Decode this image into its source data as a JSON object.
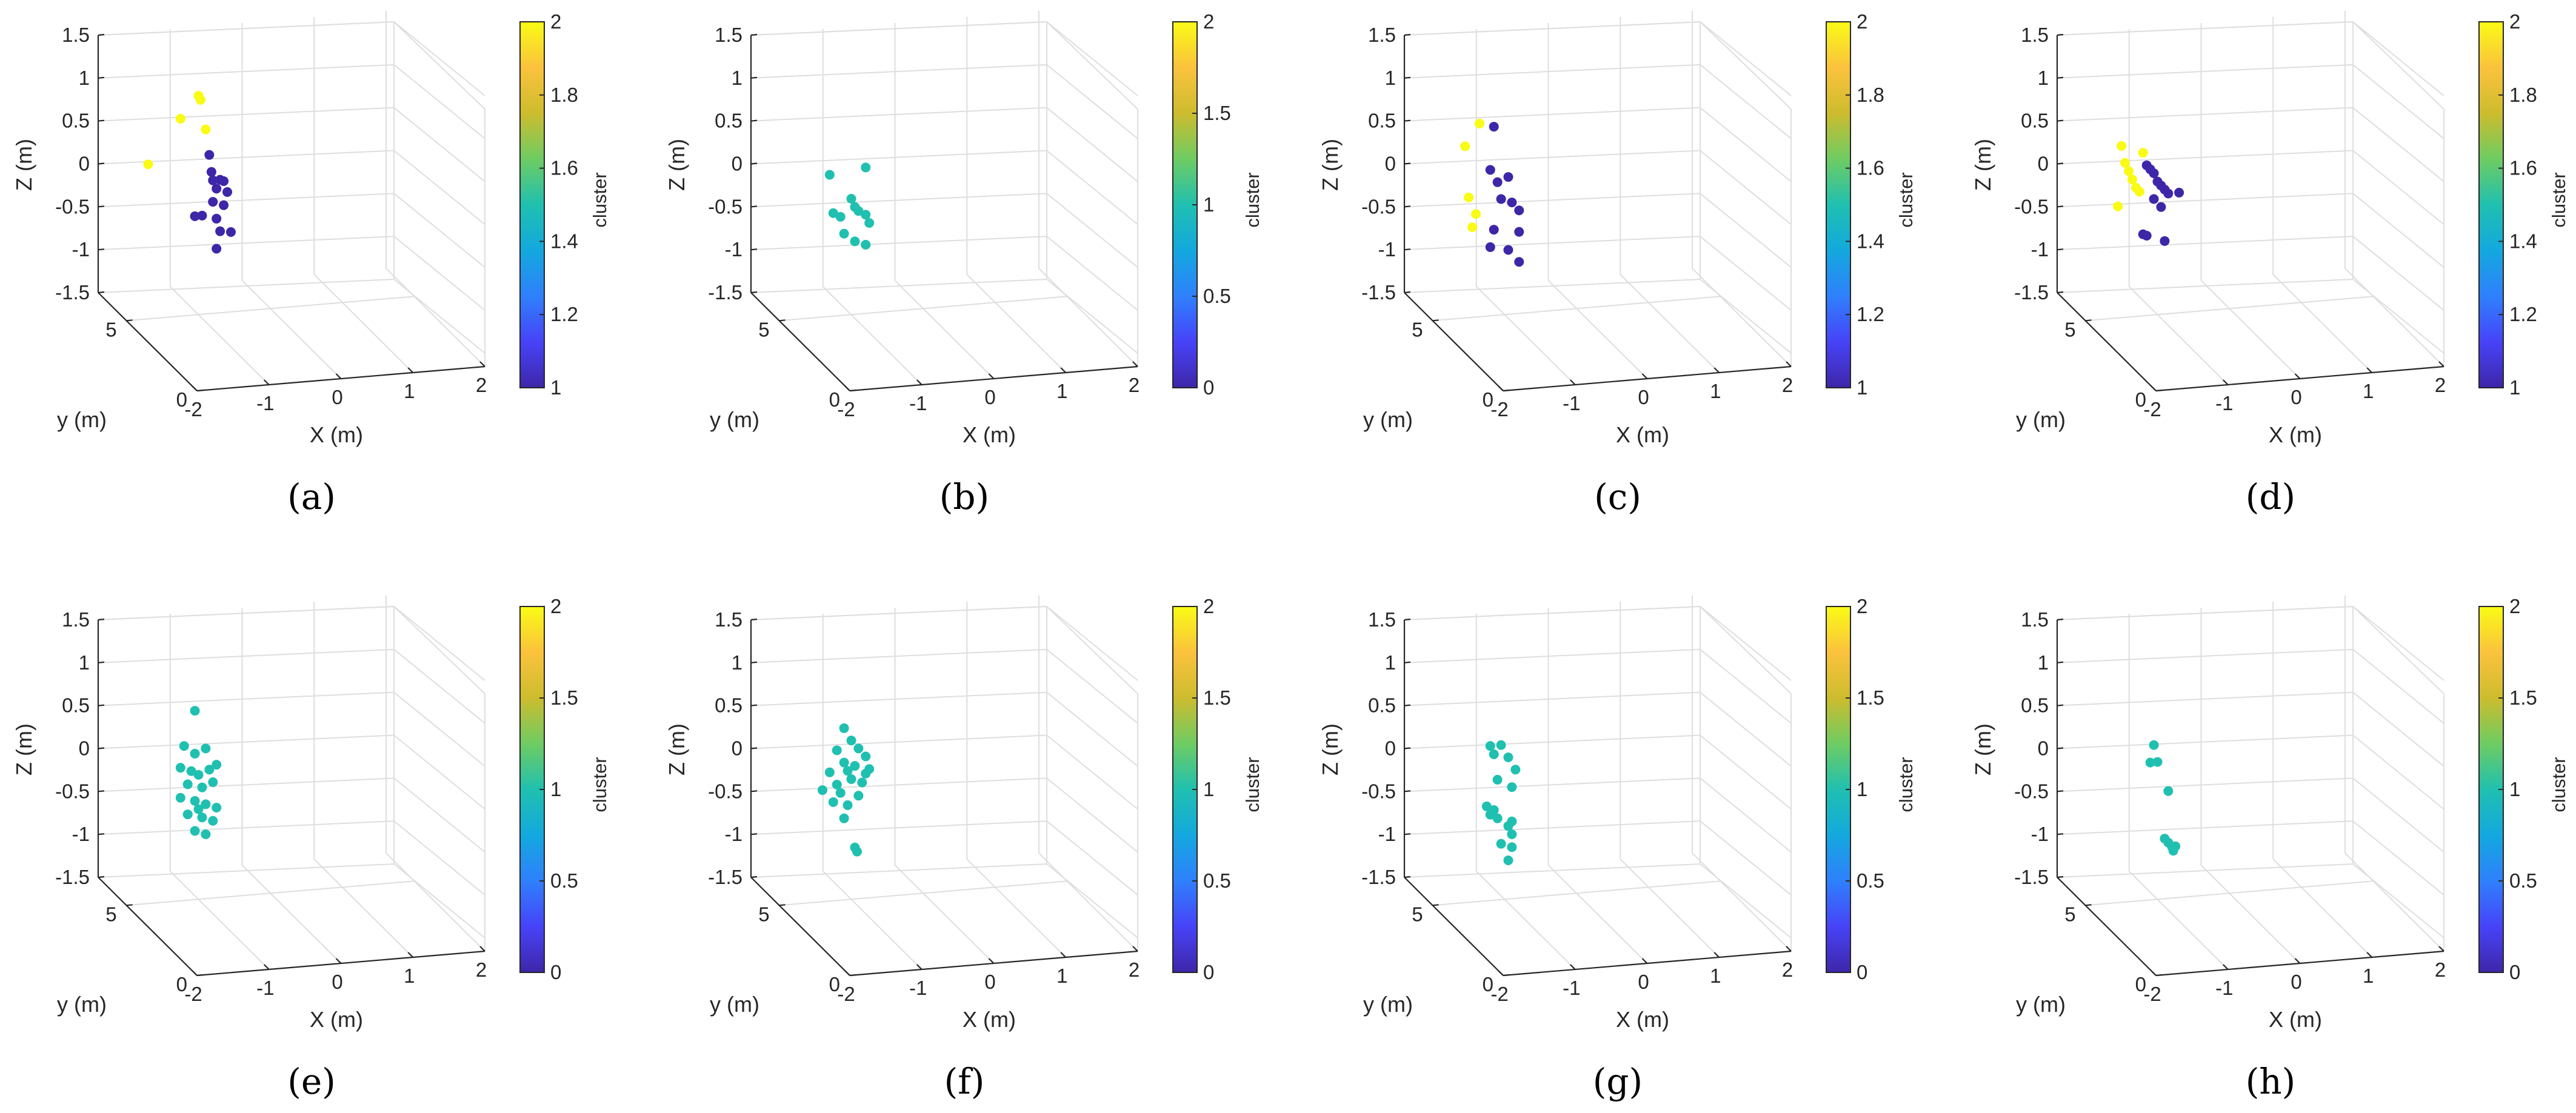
{
  "figure": {
    "colormap": [
      "#3e26a8",
      "#4743f8",
      "#2f80fc",
      "#13a8de",
      "#20c0b0",
      "#6ecc62",
      "#cdbc2e",
      "#fbc23d",
      "#f9fb15"
    ],
    "axis_line_color": "#262626",
    "grid_color": "#dedede"
  },
  "chart_data": [
    {
      "id": "a",
      "caption": "(a)",
      "type": "scatter",
      "projection": "3d",
      "xlabel": "X (m)",
      "ylabel": "y (m)",
      "zlabel": "Z (m)",
      "xlim": [
        -2,
        2
      ],
      "ylim": [
        0,
        7
      ],
      "zlim": [
        -1.5,
        1.5
      ],
      "x_ticks": [
        "-2",
        "-1",
        "0",
        "1",
        "2"
      ],
      "y_ticks": [
        "0",
        "5"
      ],
      "z_ticks": [
        "-1.5",
        "-1",
        "-0.5",
        "0",
        "0.5",
        "1",
        "1.5"
      ],
      "colorbar": {
        "label": "cluster",
        "range": [
          1,
          2
        ],
        "ticks": [
          "1",
          "1.2",
          "1.4",
          "1.6",
          "1.8",
          "2"
        ]
      },
      "points_xz": [
        [
          -0.8,
          0.9
        ],
        [
          -0.77,
          0.85
        ],
        [
          -1.05,
          0.65
        ],
        [
          -0.7,
          0.5
        ],
        [
          -1.5,
          0.15
        ],
        [
          -0.65,
          0.2
        ],
        [
          -0.62,
          0.0
        ],
        [
          -0.6,
          -0.1
        ],
        [
          -0.5,
          -0.1
        ],
        [
          -0.45,
          -0.12
        ],
        [
          -0.55,
          -0.2
        ],
        [
          -0.4,
          -0.25
        ],
        [
          -0.6,
          -0.35
        ],
        [
          -0.45,
          -0.4
        ],
        [
          -0.85,
          -0.5
        ],
        [
          -0.75,
          -0.5
        ],
        [
          -0.55,
          -0.55
        ],
        [
          -0.5,
          -0.7
        ],
        [
          -0.35,
          -0.72
        ],
        [
          -0.55,
          -0.9
        ]
      ],
      "clusters": [
        2,
        2,
        2,
        2,
        2,
        1,
        1,
        1,
        1,
        1,
        1,
        1,
        1,
        1,
        1,
        1,
        1,
        1,
        1,
        1
      ]
    },
    {
      "id": "b",
      "caption": "(b)",
      "type": "scatter",
      "projection": "3d",
      "xlabel": "X (m)",
      "ylabel": "y (m)",
      "zlabel": "Z (m)",
      "xlim": [
        -2,
        2
      ],
      "ylim": [
        0,
        7
      ],
      "zlim": [
        -1.5,
        1.5
      ],
      "x_ticks": [
        "-2",
        "-1",
        "0",
        "1",
        "2"
      ],
      "y_ticks": [
        "0",
        "5"
      ],
      "z_ticks": [
        "-1.5",
        "-1",
        "-0.5",
        "0",
        "0.5",
        "1",
        "1.5"
      ],
      "colorbar": {
        "label": "cluster",
        "range": [
          0,
          2
        ],
        "ticks": [
          "0",
          "0.5",
          "1",
          "1.5",
          "2"
        ]
      },
      "points_xz": [
        [
          -1.1,
          0.0
        ],
        [
          -0.6,
          0.05
        ],
        [
          -0.8,
          -0.3
        ],
        [
          -0.75,
          -0.4
        ],
        [
          -0.7,
          -0.45
        ],
        [
          -0.6,
          -0.5
        ],
        [
          -1.05,
          -0.45
        ],
        [
          -0.95,
          -0.5
        ],
        [
          -0.55,
          -0.6
        ],
        [
          -0.9,
          -0.7
        ],
        [
          -0.75,
          -0.8
        ],
        [
          -0.6,
          -0.85
        ]
      ],
      "clusters": [
        1,
        1,
        1,
        1,
        1,
        1,
        1,
        1,
        1,
        1,
        1,
        1
      ]
    },
    {
      "id": "c",
      "caption": "(c)",
      "type": "scatter",
      "projection": "3d",
      "xlabel": "X (m)",
      "ylabel": "y (m)",
      "zlabel": "Z (m)",
      "xlim": [
        -2,
        2
      ],
      "ylim": [
        0,
        7
      ],
      "zlim": [
        -1.5,
        1.5
      ],
      "x_ticks": [
        "-2",
        "-1",
        "0",
        "1",
        "2"
      ],
      "y_ticks": [
        "0",
        "5"
      ],
      "z_ticks": [
        "-1.5",
        "-1",
        "-0.5",
        "0",
        "0.5",
        "1",
        "1.5"
      ],
      "colorbar": {
        "label": "cluster",
        "range": [
          1,
          2
        ],
        "ticks": [
          "1",
          "1.2",
          "1.4",
          "1.6",
          "1.8",
          "2"
        ]
      },
      "points_xz": [
        [
          -1.15,
          0.6
        ],
        [
          -1.35,
          0.35
        ],
        [
          -1.3,
          -0.25
        ],
        [
          -1.2,
          -0.45
        ],
        [
          -1.25,
          -0.6
        ],
        [
          -0.95,
          0.55
        ],
        [
          -1.0,
          0.05
        ],
        [
          -0.9,
          -0.1
        ],
        [
          -0.75,
          -0.05
        ],
        [
          -0.85,
          -0.3
        ],
        [
          -0.7,
          -0.35
        ],
        [
          -0.6,
          -0.45
        ],
        [
          -0.95,
          -0.65
        ],
        [
          -0.6,
          -0.7
        ],
        [
          -0.75,
          -0.9
        ],
        [
          -1.0,
          -0.85
        ],
        [
          -0.6,
          -1.05
        ]
      ],
      "clusters": [
        2,
        2,
        2,
        2,
        2,
        1,
        1,
        1,
        1,
        1,
        1,
        1,
        1,
        1,
        1,
        1,
        1
      ]
    },
    {
      "id": "d",
      "caption": "(d)",
      "type": "scatter",
      "projection": "3d",
      "xlabel": "X (m)",
      "ylabel": "y (m)",
      "zlabel": "Z (m)",
      "xlim": [
        -2,
        2
      ],
      "ylim": [
        0,
        7
      ],
      "zlim": [
        -1.5,
        1.5
      ],
      "x_ticks": [
        "-2",
        "-1",
        "0",
        "1",
        "2"
      ],
      "y_ticks": [
        "0",
        "5"
      ],
      "z_ticks": [
        "-1.5",
        "-1",
        "-0.5",
        "0",
        "0.5",
        "1",
        "1.5"
      ],
      "colorbar": {
        "label": "cluster",
        "range": [
          1,
          2
        ],
        "ticks": [
          "1",
          "1.2",
          "1.4",
          "1.6",
          "1.8",
          "2"
        ]
      },
      "points_xz": [
        [
          -1.3,
          0.35
        ],
        [
          -1.25,
          0.15
        ],
        [
          -1.2,
          0.05
        ],
        [
          -1.15,
          -0.05
        ],
        [
          -1.1,
          -0.15
        ],
        [
          -1.05,
          -0.2
        ],
        [
          -1.35,
          -0.35
        ],
        [
          -1.0,
          0.25
        ],
        [
          -0.95,
          0.1
        ],
        [
          -0.9,
          0.05
        ],
        [
          -0.85,
          0.0
        ],
        [
          -0.8,
          -0.1
        ],
        [
          -0.75,
          -0.15
        ],
        [
          -0.7,
          -0.2
        ],
        [
          -0.65,
          -0.25
        ],
        [
          -0.85,
          -0.3
        ],
        [
          -0.5,
          -0.25
        ],
        [
          -0.75,
          -0.4
        ],
        [
          -1.0,
          -0.7
        ],
        [
          -0.95,
          -0.72
        ],
        [
          -0.7,
          -0.8
        ]
      ],
      "clusters": [
        2,
        2,
        2,
        2,
        2,
        2,
        2,
        2,
        1,
        1,
        1,
        1,
        1,
        1,
        1,
        1,
        1,
        1,
        1,
        1,
        1
      ]
    },
    {
      "id": "e",
      "caption": "(e)",
      "type": "scatter",
      "projection": "3d",
      "xlabel": "X (m)",
      "ylabel": "y (m)",
      "zlabel": "Z (m)",
      "xlim": [
        -2,
        2
      ],
      "ylim": [
        0,
        7
      ],
      "zlim": [
        -1.5,
        1.5
      ],
      "x_ticks": [
        "-2",
        "-1",
        "0",
        "1",
        "2"
      ],
      "y_ticks": [
        "0",
        "5"
      ],
      "z_ticks": [
        "-1.5",
        "-1",
        "-0.5",
        "0",
        "0.5",
        "1",
        "1.5"
      ],
      "colorbar": {
        "label": "cluster",
        "range": [
          0,
          2
        ],
        "ticks": [
          "0",
          "0.5",
          "1",
          "1.5",
          "2"
        ]
      },
      "points_xz": [
        [
          -0.85,
          0.55
        ],
        [
          -1.0,
          0.15
        ],
        [
          -0.85,
          0.05
        ],
        [
          -0.7,
          0.1
        ],
        [
          -1.05,
          -0.1
        ],
        [
          -0.9,
          -0.15
        ],
        [
          -0.8,
          -0.2
        ],
        [
          -0.65,
          -0.15
        ],
        [
          -0.55,
          -0.1
        ],
        [
          -0.95,
          -0.3
        ],
        [
          -0.75,
          -0.35
        ],
        [
          -0.6,
          -0.3
        ],
        [
          -1.05,
          -0.45
        ],
        [
          -0.85,
          -0.5
        ],
        [
          -0.7,
          -0.55
        ],
        [
          -0.95,
          -0.65
        ],
        [
          -0.75,
          -0.7
        ],
        [
          -0.6,
          -0.75
        ],
        [
          -0.85,
          -0.85
        ],
        [
          -0.7,
          -0.9
        ],
        [
          -0.55,
          -0.6
        ],
        [
          -0.8,
          -0.6
        ]
      ],
      "clusters": [
        1,
        1,
        1,
        1,
        1,
        1,
        1,
        1,
        1,
        1,
        1,
        1,
        1,
        1,
        1,
        1,
        1,
        1,
        1,
        1,
        1,
        1
      ]
    },
    {
      "id": "f",
      "caption": "(f)",
      "type": "scatter",
      "projection": "3d",
      "xlabel": "X (m)",
      "ylabel": "y (m)",
      "zlabel": "Z (m)",
      "xlim": [
        -2,
        2
      ],
      "ylim": [
        0,
        7
      ],
      "zlim": [
        -1.5,
        1.5
      ],
      "x_ticks": [
        "-2",
        "-1",
        "0",
        "1",
        "2"
      ],
      "y_ticks": [
        "0",
        "5"
      ],
      "z_ticks": [
        "-1.5",
        "-1",
        "-0.5",
        "0",
        "0.5",
        "1",
        "1.5"
      ],
      "colorbar": {
        "label": "cluster",
        "range": [
          0,
          2
        ],
        "ticks": [
          "0",
          "0.5",
          "1",
          "1.5",
          "2"
        ]
      },
      "points_xz": [
        [
          -0.9,
          0.35
        ],
        [
          -0.8,
          0.2
        ],
        [
          -1.0,
          0.1
        ],
        [
          -0.7,
          0.1
        ],
        [
          -0.6,
          0.0
        ],
        [
          -0.9,
          -0.05
        ],
        [
          -0.75,
          -0.1
        ],
        [
          -1.1,
          -0.15
        ],
        [
          -0.55,
          -0.15
        ],
        [
          -0.8,
          -0.25
        ],
        [
          -0.65,
          -0.3
        ],
        [
          -1.2,
          -0.35
        ],
        [
          -0.95,
          -0.4
        ],
        [
          -1.05,
          -0.5
        ],
        [
          -0.85,
          -0.55
        ],
        [
          -0.7,
          -0.45
        ],
        [
          -0.9,
          -0.7
        ],
        [
          -0.75,
          -1.05
        ],
        [
          -0.72,
          -1.1
        ],
        [
          -1.0,
          -0.3
        ],
        [
          -0.6,
          -0.2
        ],
        [
          -0.85,
          -0.15
        ]
      ],
      "clusters": [
        1,
        1,
        1,
        1,
        1,
        1,
        1,
        1,
        1,
        1,
        1,
        1,
        1,
        1,
        1,
        1,
        1,
        1,
        1,
        1,
        1,
        1
      ]
    },
    {
      "id": "g",
      "caption": "(g)",
      "type": "scatter",
      "projection": "3d",
      "xlabel": "X (m)",
      "ylabel": "y (m)",
      "zlabel": "Z (m)",
      "xlim": [
        -2,
        2
      ],
      "ylim": [
        0,
        7
      ],
      "zlim": [
        -1.5,
        1.5
      ],
      "x_ticks": [
        "-2",
        "-1",
        "0",
        "1",
        "2"
      ],
      "y_ticks": [
        "0",
        "5"
      ],
      "z_ticks": [
        "-1.5",
        "-1",
        "-0.5",
        "0",
        "0.5",
        "1",
        "1.5"
      ],
      "colorbar": {
        "label": "cluster",
        "range": [
          0,
          2
        ],
        "ticks": [
          "0",
          "0.5",
          "1",
          "1.5",
          "2"
        ]
      },
      "points_xz": [
        [
          -1.0,
          0.15
        ],
        [
          -0.85,
          0.15
        ],
        [
          -0.95,
          0.05
        ],
        [
          -0.75,
          0.0
        ],
        [
          -0.65,
          -0.15
        ],
        [
          -0.9,
          -0.25
        ],
        [
          -0.7,
          -0.35
        ],
        [
          -1.05,
          -0.55
        ],
        [
          -0.95,
          -0.6
        ],
        [
          -0.9,
          -0.7
        ],
        [
          -0.75,
          -0.8
        ],
        [
          -0.7,
          -0.9
        ],
        [
          -0.85,
          -1.0
        ],
        [
          -0.7,
          -1.05
        ],
        [
          -0.75,
          -1.2
        ],
        [
          -0.7,
          -0.75
        ],
        [
          -1.0,
          -0.65
        ]
      ],
      "clusters": [
        1,
        1,
        1,
        1,
        1,
        1,
        1,
        1,
        1,
        1,
        1,
        1,
        1,
        1,
        1,
        1,
        1
      ]
    },
    {
      "id": "h",
      "caption": "(h)",
      "type": "scatter",
      "projection": "3d",
      "xlabel": "X (m)",
      "ylabel": "y (m)",
      "zlabel": "Z (m)",
      "xlim": [
        -2,
        2
      ],
      "ylim": [
        0,
        7
      ],
      "zlim": [
        -1.5,
        1.5
      ],
      "x_ticks": [
        "-2",
        "-1",
        "0",
        "1",
        "2"
      ],
      "y_ticks": [
        "0",
        "5"
      ],
      "z_ticks": [
        "-1.5",
        "-1",
        "-0.5",
        "0",
        "0.5",
        "1",
        "1.5"
      ],
      "colorbar": {
        "label": "cluster",
        "range": [
          0,
          2
        ],
        "ticks": [
          "0",
          "0.5",
          "1",
          "1.5",
          "2"
        ]
      },
      "points_xz": [
        [
          -0.85,
          0.15
        ],
        [
          -0.9,
          -0.05
        ],
        [
          -0.8,
          -0.05
        ],
        [
          -0.65,
          -0.4
        ],
        [
          -0.7,
          -0.95
        ],
        [
          -0.65,
          -1.0
        ],
        [
          -0.6,
          -1.05
        ],
        [
          -0.55,
          -1.05
        ],
        [
          -0.58,
          -1.1
        ]
      ],
      "clusters": [
        1,
        1,
        1,
        1,
        1,
        1,
        1,
        1,
        1
      ]
    }
  ]
}
